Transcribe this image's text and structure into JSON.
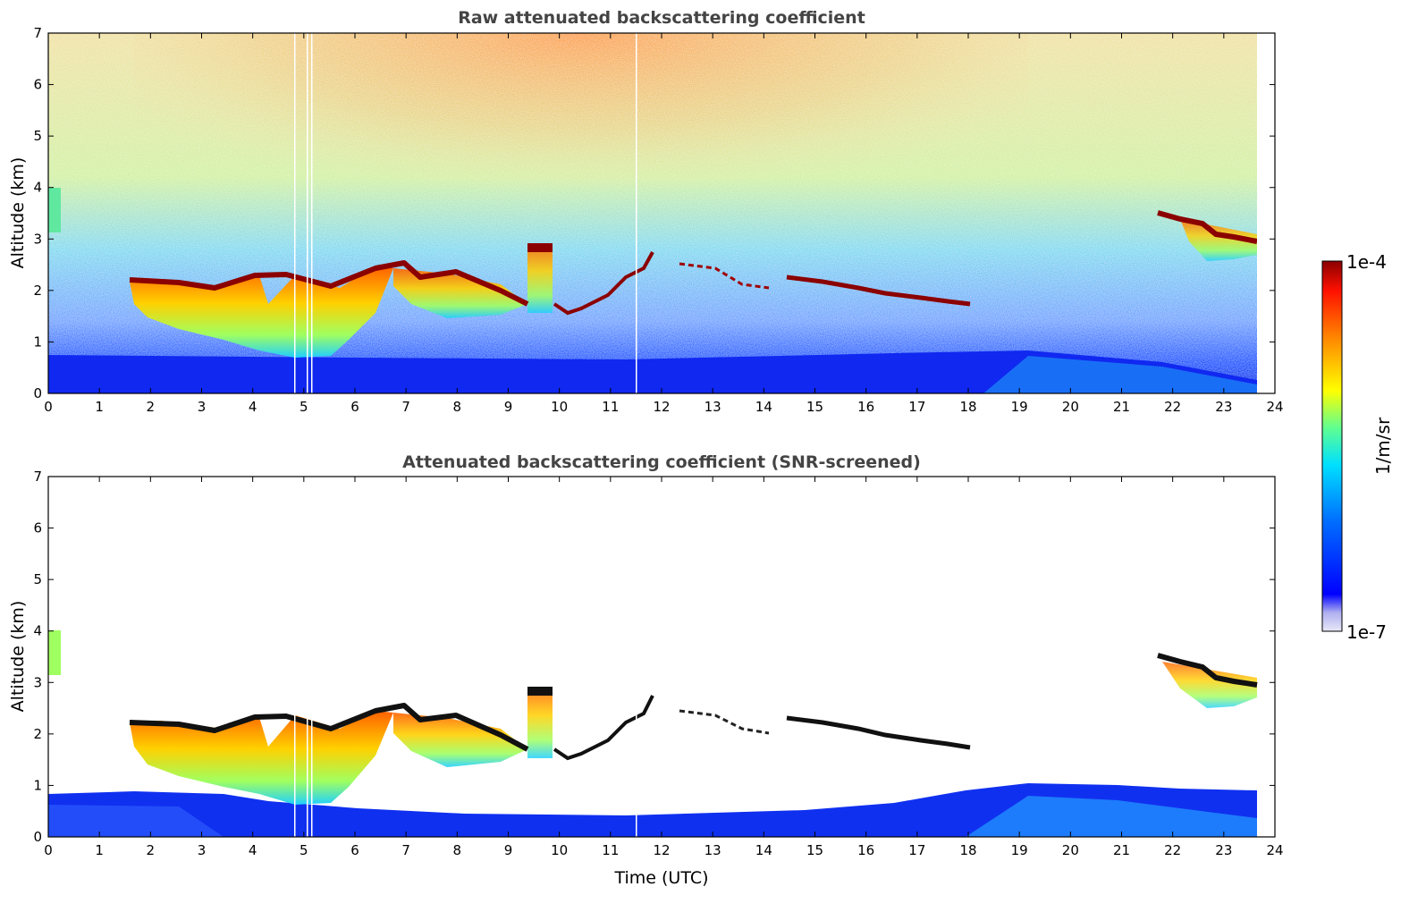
{
  "chart_data": [
    {
      "type": "heatmap",
      "title": "Raw attenuated backscattering coefficient",
      "xlabel": "",
      "ylabel": "Altitude (km)",
      "xlim": [
        0,
        24
      ],
      "ylim": [
        0,
        7
      ],
      "x_ticks": [
        "0",
        "1",
        "2",
        "3",
        "4",
        "5",
        "6",
        "7",
        "8",
        "9",
        "10",
        "11",
        "12",
        "13",
        "14",
        "15",
        "16",
        "17",
        "18",
        "19",
        "20",
        "21",
        "22",
        "23",
        "24"
      ],
      "y_ticks": [
        "0",
        "1",
        "2",
        "3",
        "4",
        "5",
        "6",
        "7"
      ],
      "data_extent_hours": [
        0,
        23.65
      ],
      "features": {
        "near_surface_layer_top_km": [
          [
            0,
            0.7
          ],
          [
            6,
            0.6
          ],
          [
            12,
            0.55
          ],
          [
            18,
            0.7
          ],
          [
            20,
            0.65
          ],
          [
            23.65,
            0.3
          ]
        ],
        "cloud_base_layer_km": [
          [
            1.6,
            2.2
          ],
          [
            3,
            2.05
          ],
          [
            4.2,
            2.3
          ],
          [
            5.5,
            2.05
          ],
          [
            6.8,
            2.5
          ],
          [
            8,
            2.35
          ],
          [
            9.2,
            1.75
          ],
          [
            9.4,
            2.8
          ],
          [
            10,
            1.6
          ],
          [
            11,
            2.3
          ],
          [
            11.8,
            2.75
          ],
          [
            13,
            2.2
          ],
          [
            14.5,
            2.2
          ],
          [
            16,
            2.0
          ],
          [
            18,
            1.75
          ]
        ],
        "upper_cloud_km": [
          [
            21.7,
            3.5
          ],
          [
            22.5,
            3.3
          ],
          [
            23.65,
            2.95
          ]
        ]
      }
    },
    {
      "type": "heatmap",
      "title": "Attenuated backscattering coefficient (SNR-screened)",
      "xlabel": "Time (UTC)",
      "ylabel": "Altitude (km)",
      "xlim": [
        0,
        24
      ],
      "ylim": [
        0,
        7
      ],
      "x_ticks": [
        "0",
        "1",
        "2",
        "3",
        "4",
        "5",
        "6",
        "7",
        "8",
        "9",
        "10",
        "11",
        "12",
        "13",
        "14",
        "15",
        "16",
        "17",
        "18",
        "19",
        "20",
        "21",
        "22",
        "23",
        "24"
      ],
      "y_ticks": [
        "0",
        "1",
        "2",
        "3",
        "4",
        "5",
        "6",
        "7"
      ],
      "data_extent_hours": [
        0,
        23.65
      ]
    }
  ],
  "colorbar": {
    "label": "1/m/sr",
    "max_label": "1e-4",
    "min_label": "1e-7",
    "min_value": 1e-07,
    "max_value": 0.0001,
    "scale": "log",
    "colormap": "jet",
    "colors": [
      "#e8e8f8",
      "#b0b0f0",
      "#0000ff",
      "#0060ff",
      "#00c0ff",
      "#40ffc0",
      "#a0ff60",
      "#ffff00",
      "#ffa000",
      "#ff3000",
      "#8b0000"
    ]
  }
}
